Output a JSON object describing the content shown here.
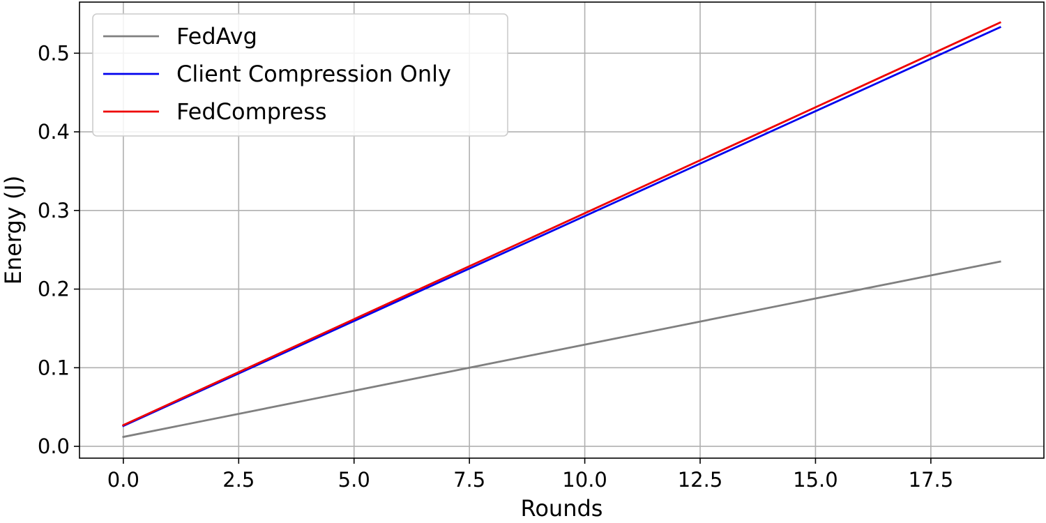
{
  "chart_data": {
    "type": "line",
    "title": "",
    "xlabel": "Rounds",
    "ylabel": "Energy (J)",
    "xlim": [
      -0.95,
      19.95
    ],
    "ylim": [
      -0.015,
      0.565
    ],
    "grid": true,
    "legend_position": "top-left",
    "x_ticks": [
      0.0,
      2.5,
      5.0,
      7.5,
      10.0,
      12.5,
      15.0,
      17.5
    ],
    "x_tick_labels": [
      "0.0",
      "2.5",
      "5.0",
      "7.5",
      "10.0",
      "12.5",
      "15.0",
      "17.5"
    ],
    "y_ticks": [
      0.0,
      0.1,
      0.2,
      0.3,
      0.4,
      0.5
    ],
    "y_tick_labels": [
      "0.0",
      "0.1",
      "0.2",
      "0.3",
      "0.4",
      "0.5"
    ],
    "x": [
      0,
      19
    ],
    "series": [
      {
        "name": "FedAvg",
        "color": "#808080",
        "values": [
          0.012,
          0.235
        ]
      },
      {
        "name": "Client Compression Only",
        "color": "#0000ee",
        "values": [
          0.026,
          0.533
        ]
      },
      {
        "name": "FedCompress",
        "color": "#ee0000",
        "values": [
          0.027,
          0.539
        ]
      }
    ]
  }
}
